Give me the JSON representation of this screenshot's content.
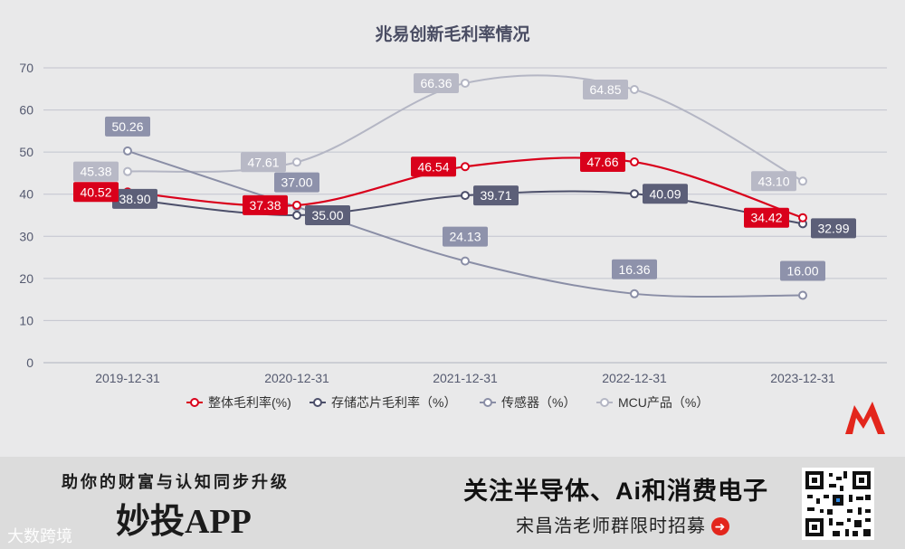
{
  "chart_data": {
    "type": "line",
    "title": "兆易创新毛利率情况",
    "categories": [
      "2019-12-31",
      "2020-12-31",
      "2021-12-31",
      "2022-12-31",
      "2023-12-31"
    ],
    "ylim": [
      0,
      70
    ],
    "yticks": [
      0,
      10,
      20,
      30,
      40,
      50,
      60,
      70
    ],
    "grid": true,
    "legend_position": "bottom",
    "series": [
      {
        "name": "整体毛利率(%)",
        "color": "#d9001b",
        "label_bg": "#d9001b",
        "values": [
          40.52,
          37.38,
          46.54,
          47.66,
          34.42
        ]
      },
      {
        "name": "存储芯片毛利率（%）",
        "color": "#4c4f6a",
        "label_bg": "#5c5f78",
        "values": [
          38.9,
          35.0,
          39.71,
          40.09,
          32.99
        ]
      },
      {
        "name": "传感器（%）",
        "color": "#8a8ea6",
        "label_bg": "#8e92ab",
        "values": [
          50.26,
          37.0,
          24.13,
          16.36,
          16.0
        ]
      },
      {
        "name": "MCU产品（%）",
        "color": "#b4b6c4",
        "label_bg": "#b8b9c6",
        "values": [
          45.38,
          47.61,
          66.36,
          64.85,
          43.1
        ]
      }
    ]
  },
  "banner": {
    "tagline": "助你的财富与认知同步升级",
    "app_name": "妙投APP",
    "headline": "关注半导体、Ai和消费电子",
    "recruit": "宋昌浩老师群限时招募",
    "watermark": "大数跨境"
  }
}
